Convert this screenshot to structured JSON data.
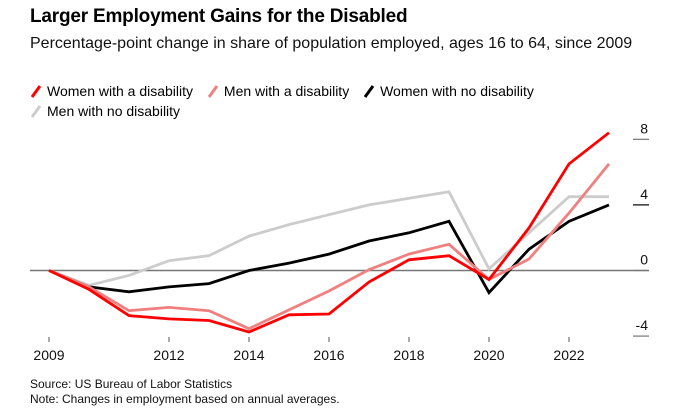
{
  "header": {
    "title": "Larger Employment Gains for the Disabled",
    "subtitle": "Percentage-point change in share of population employed, ages 16 to 64, since 2009"
  },
  "footer": {
    "source": "Source: US Bureau of Labor Statistics",
    "note": "Note: Changes in employment based on annual averages."
  },
  "chart_data": {
    "type": "line",
    "title": "Larger Employment Gains for the Disabled",
    "subtitle": "Percentage-point change in share of population employed, ages 16 to 64, since 2009",
    "xlabel": "",
    "ylabel": "",
    "x": [
      2009,
      2010,
      2011,
      2012,
      2013,
      2014,
      2015,
      2016,
      2017,
      2018,
      2019,
      2020,
      2021,
      2022,
      2023
    ],
    "xlim": [
      2009,
      2023
    ],
    "ylim": [
      -4.5,
      8.5
    ],
    "x_ticks": [
      2009,
      2012,
      2014,
      2016,
      2018,
      2020,
      2022
    ],
    "x_tick_labels": [
      "2009",
      "2012",
      "2014",
      "2016",
      "2018",
      "2020",
      "2022"
    ],
    "y_ticks": [
      8,
      4,
      0,
      -4
    ],
    "y_tick_labels": [
      "8",
      "4",
      "0",
      "-4"
    ],
    "y_axis_position": "right",
    "grid": false,
    "zero_line": true,
    "legend_position": "top-left",
    "series": [
      {
        "name": "Men with no disability",
        "color": "#cccccc",
        "values": [
          0,
          -0.9,
          -0.3,
          0.6,
          0.9,
          2.1,
          2.8,
          3.4,
          4.0,
          4.4,
          4.8,
          0.1,
          2.3,
          4.5,
          4.5
        ]
      },
      {
        "name": "Women with no disability",
        "color": "#000000",
        "values": [
          0,
          -1.0,
          -1.3,
          -1.0,
          -0.8,
          0.0,
          0.45,
          1.0,
          1.8,
          2.3,
          3.0,
          -1.35,
          1.3,
          3.0,
          4.0
        ]
      },
      {
        "name": "Men with a disability",
        "color": "#f08080",
        "values": [
          0,
          -1.0,
          -2.45,
          -2.25,
          -2.45,
          -3.55,
          -2.4,
          -1.25,
          0.05,
          1.0,
          1.6,
          -0.55,
          0.7,
          3.5,
          6.5
        ]
      },
      {
        "name": "Women with a disability",
        "color": "#ff0000",
        "values": [
          0,
          -1.15,
          -2.75,
          -2.95,
          -3.05,
          -3.75,
          -2.7,
          -2.65,
          -0.7,
          0.65,
          0.9,
          -0.55,
          2.6,
          6.5,
          8.4
        ]
      }
    ],
    "legend": [
      {
        "name": "Women with a disability",
        "color": "#ff0000"
      },
      {
        "name": "Men with a disability",
        "color": "#f08080"
      },
      {
        "name": "Women with no disability",
        "color": "#000000"
      },
      {
        "name": "Men with no disability",
        "color": "#cccccc"
      }
    ]
  }
}
